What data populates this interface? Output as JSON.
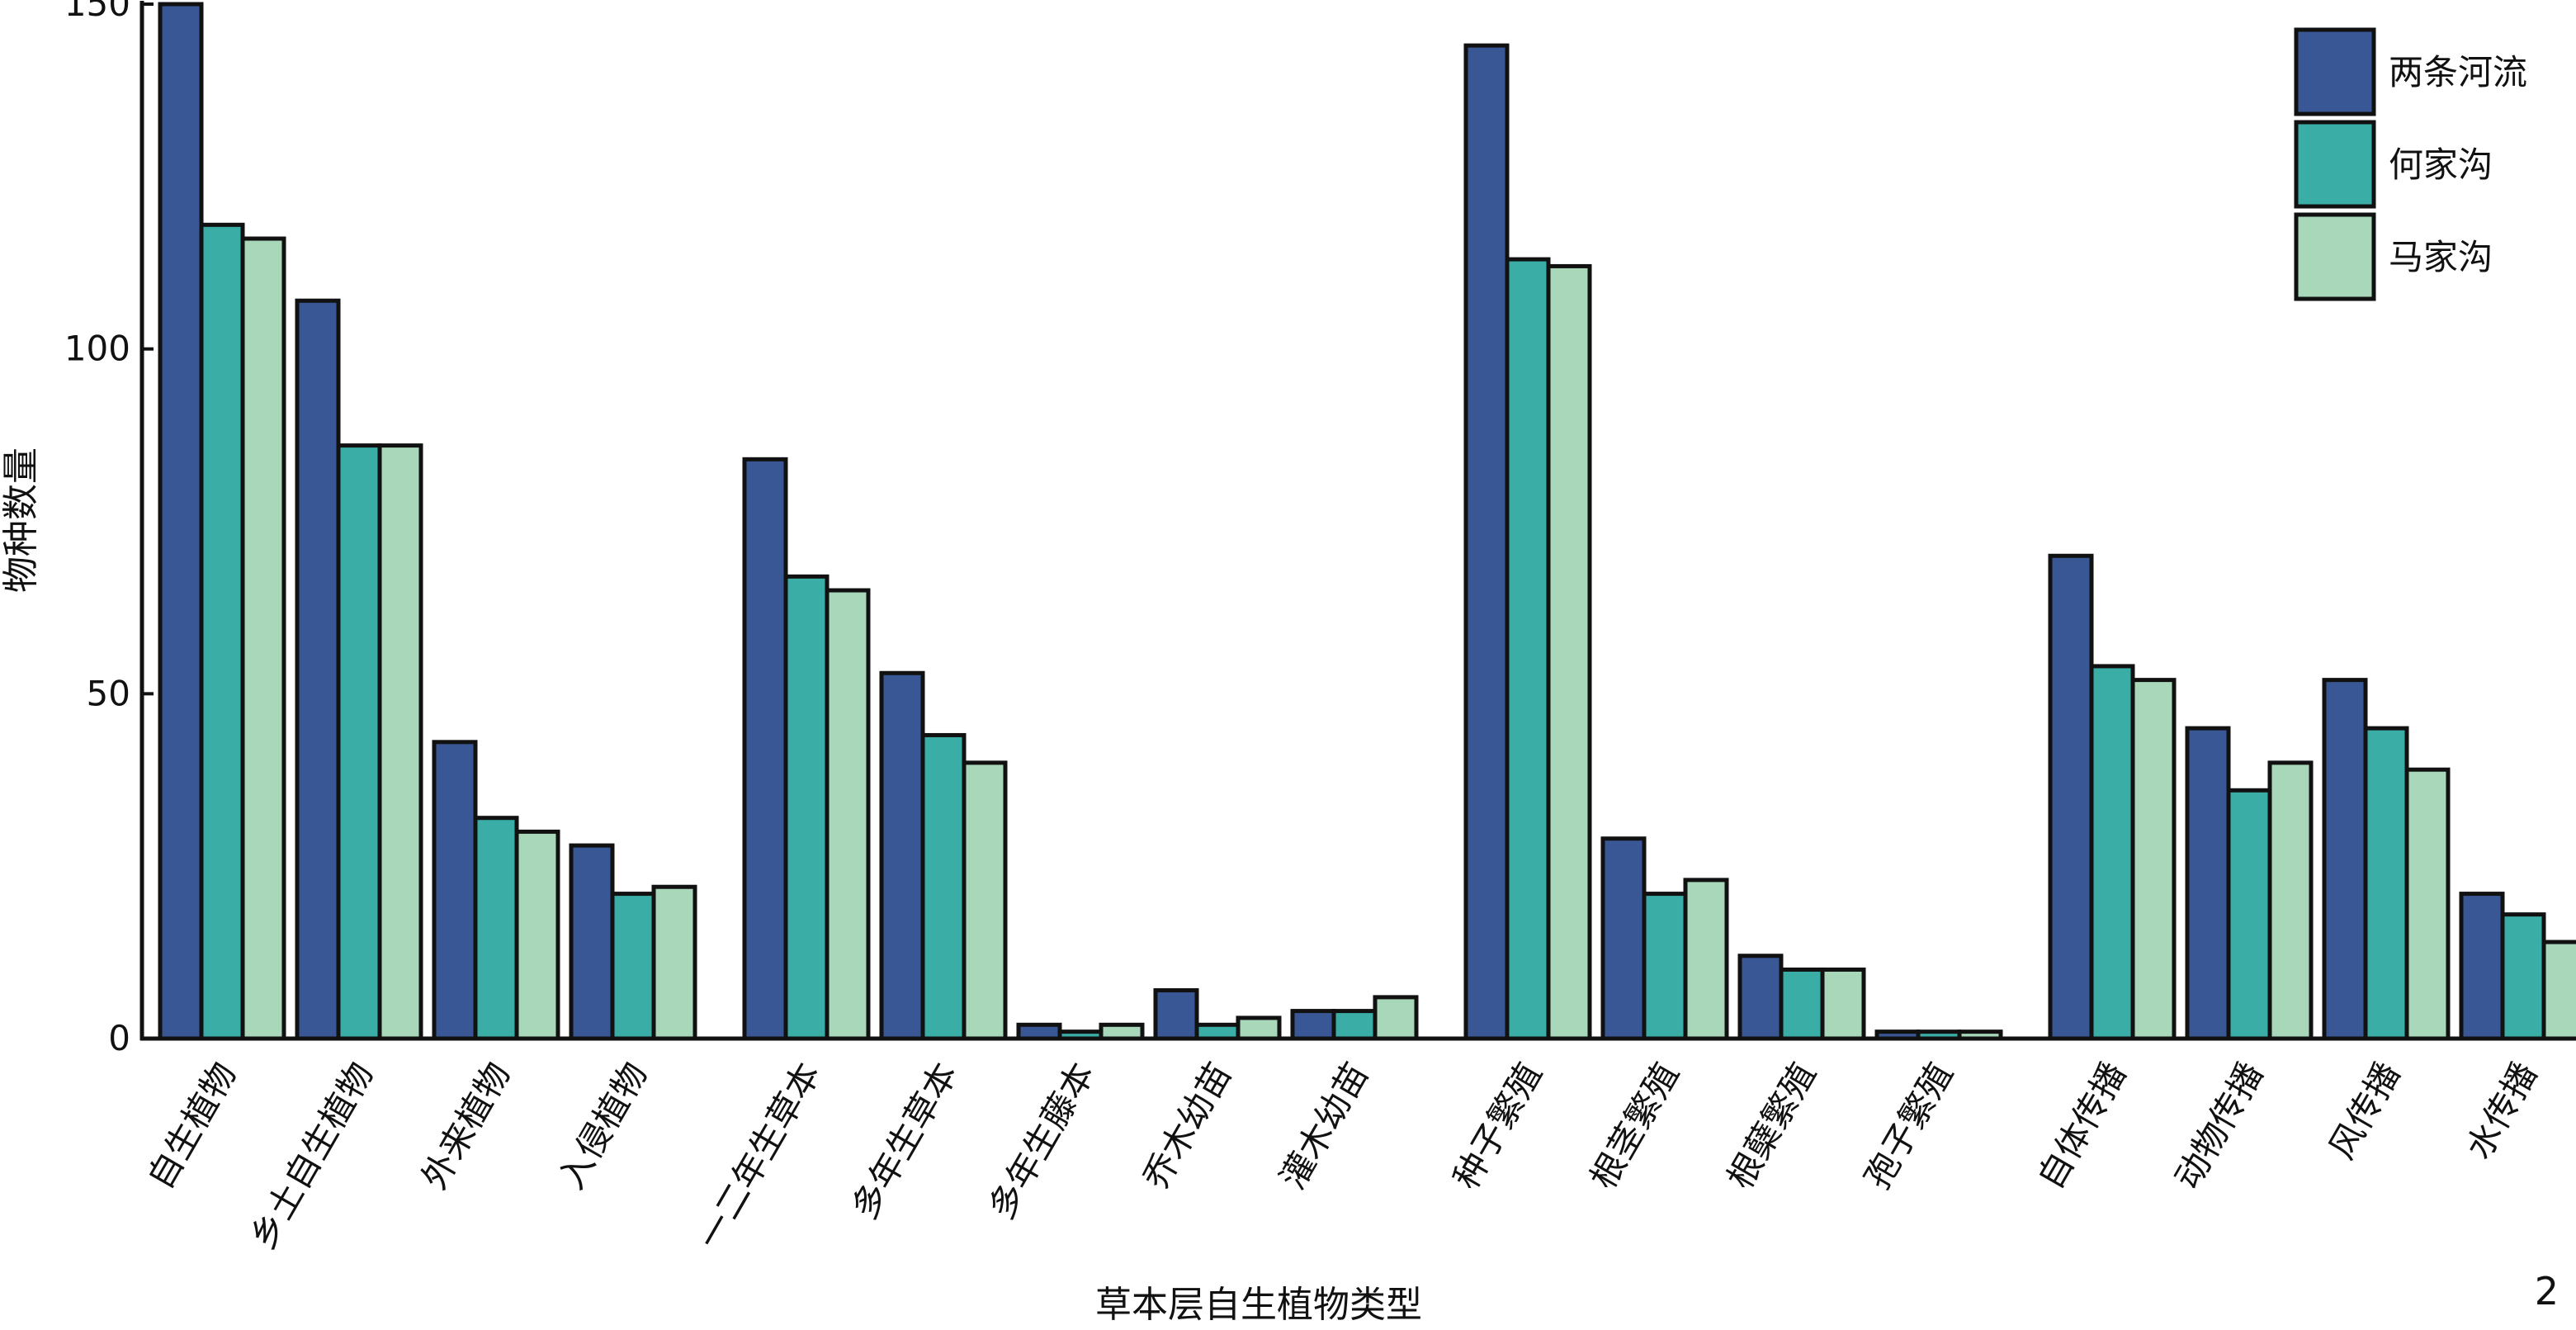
{
  "chart_data": {
    "type": "bar",
    "title": "",
    "xlabel": "草本层自生植物类型",
    "ylabel": "物种数量",
    "ylim": [
      0,
      150
    ],
    "yticks": [
      0,
      50,
      100,
      150
    ],
    "legend_position": "top-right",
    "panel_label": "2",
    "groups": [
      {
        "categories": [
          "自生植物",
          "乡土自生植物",
          "外来植物",
          "入侵植物"
        ]
      },
      {
        "categories": [
          "一二年生草本",
          "多年生草本",
          "多年生藤本",
          "乔木幼苗",
          "灌木幼苗"
        ]
      },
      {
        "categories": [
          "种子繁殖",
          "根茎繁殖",
          "根蘖繁殖",
          "孢子繁殖"
        ]
      },
      {
        "categories": [
          "自体传播",
          "动物传播",
          "风传播",
          "水传播"
        ]
      }
    ],
    "categories": [
      "自生植物",
      "乡土自生植物",
      "外来植物",
      "入侵植物",
      "一二年生草本",
      "多年生草本",
      "多年生藤本",
      "乔木幼苗",
      "灌木幼苗",
      "种子繁殖",
      "根茎繁殖",
      "根蘖繁殖",
      "孢子繁殖",
      "自体传播",
      "动物传播",
      "风传播",
      "水传播"
    ],
    "series": [
      {
        "name": "两条河流",
        "color": "#3a5795",
        "values": [
          150,
          107,
          43,
          28,
          84,
          53,
          2,
          7,
          4,
          144,
          29,
          12,
          1,
          70,
          45,
          52,
          21
        ]
      },
      {
        "name": "何家沟",
        "color": "#3aaea6",
        "values": [
          118,
          86,
          32,
          21,
          67,
          44,
          1,
          2,
          4,
          113,
          21,
          10,
          1,
          54,
          36,
          45,
          18
        ]
      },
      {
        "name": "马家沟",
        "color": "#a8d8b9",
        "values": [
          116,
          86,
          30,
          22,
          65,
          40,
          2,
          3,
          6,
          112,
          23,
          10,
          1,
          52,
          40,
          39,
          14
        ]
      }
    ]
  }
}
